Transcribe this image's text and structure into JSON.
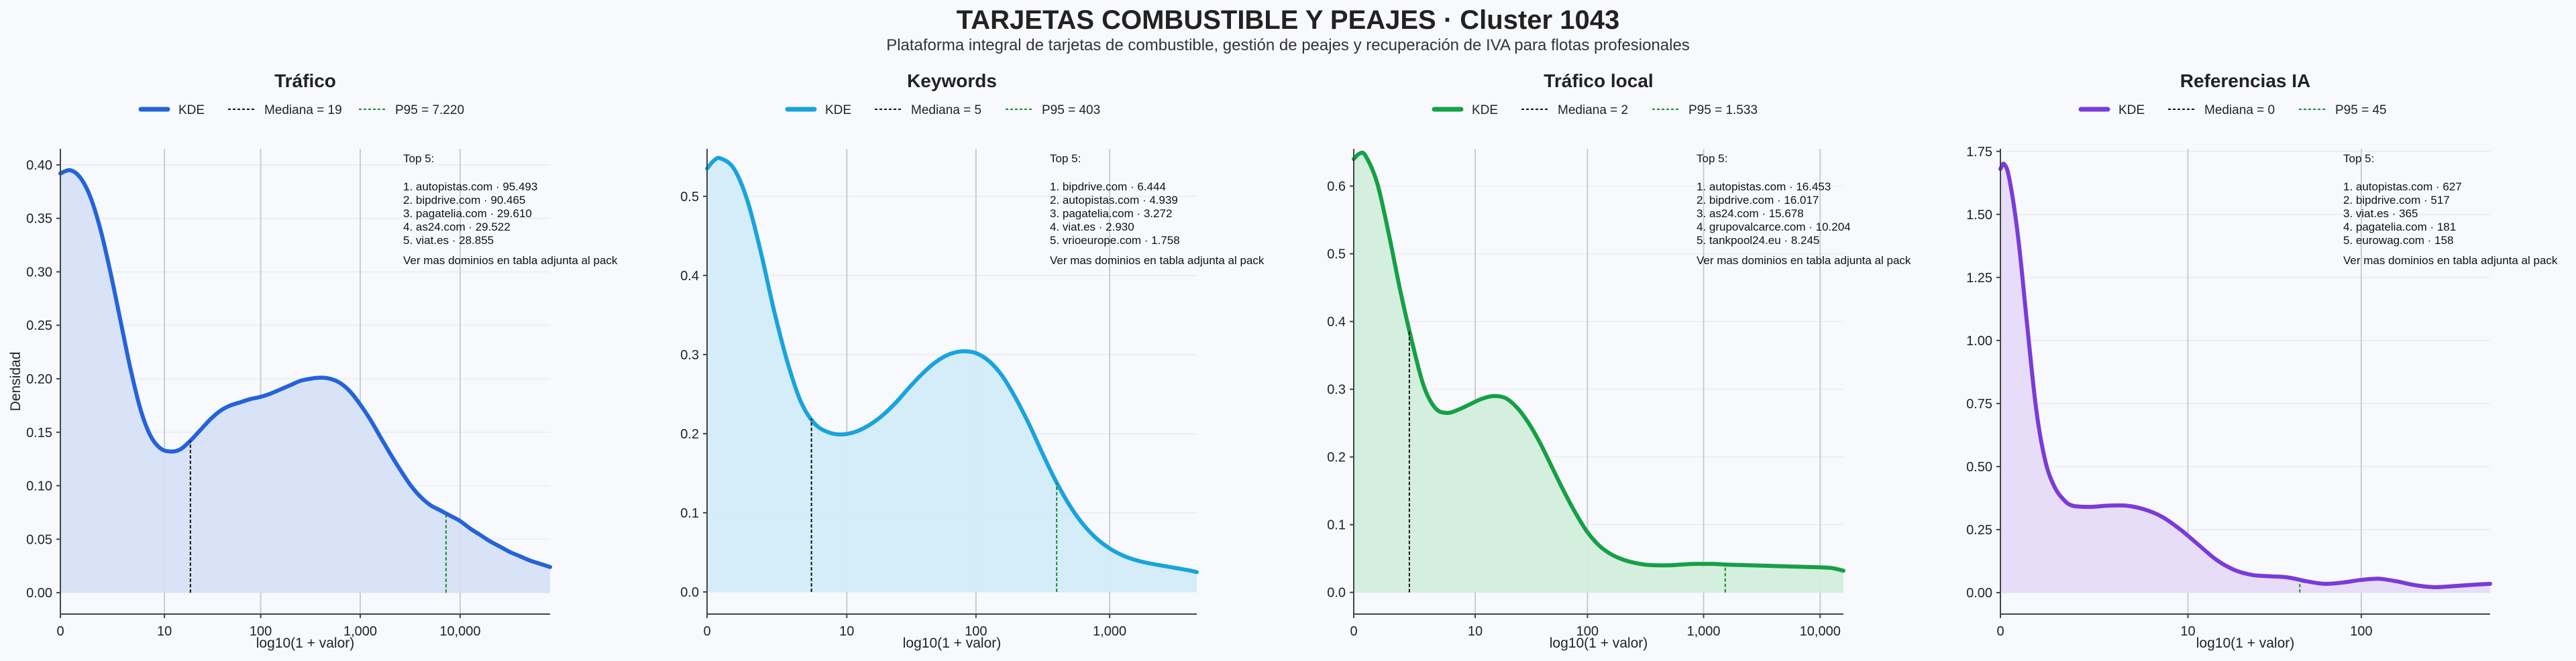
{
  "title": "TARJETAS COMBUSTIBLE Y PEAJES · Cluster 1043",
  "subtitle": "Plataforma integral de tarjetas de combustible, gestión de peajes y recuperación de IVA para flotas profesionales",
  "y_axis_label": "Densidad",
  "x_axis_label": "log10(1 + valor)",
  "legend": {
    "kde": "KDE"
  },
  "top_header": "Top 5:",
  "top_footer": "Ver mas dominios en tabla adjunta al pack",
  "chart_data": [
    {
      "type": "area",
      "title": "Tráfico",
      "color": "#2563d9",
      "fill": "#d6e1f7",
      "xlabel": "log10(1 + valor)",
      "ylabel": "Densidad",
      "xlim": [
        0,
        4.9
      ],
      "ylim": [
        -0.02,
        0.415
      ],
      "xticks": [
        {
          "v": 0,
          "label": "0"
        },
        {
          "v": 1.0414,
          "label": "10"
        },
        {
          "v": 2.0043,
          "label": "100"
        },
        {
          "v": 3.0004,
          "label": "1,000"
        },
        {
          "v": 4,
          "label": "10,000"
        }
      ],
      "yticks": [
        0,
        0.05,
        0.1,
        0.15,
        0.2,
        0.25,
        0.3,
        0.35,
        0.4
      ],
      "ytick_labels": [
        "0.00",
        "0.05",
        "0.10",
        "0.15",
        "0.20",
        "0.25",
        "0.30",
        "0.35",
        "0.40"
      ],
      "median_label": "Mediana = 19",
      "median_x": 1.301,
      "p95_label": "P95 = 7.220",
      "p95_x": 3.859,
      "kde": {
        "x": [
          0,
          0.1,
          0.2,
          0.3,
          0.4,
          0.5,
          0.6,
          0.7,
          0.8,
          0.9,
          1.0,
          1.1,
          1.2,
          1.3,
          1.4,
          1.5,
          1.6,
          1.7,
          1.8,
          1.9,
          2.0,
          2.1,
          2.2,
          2.3,
          2.4,
          2.5,
          2.6,
          2.7,
          2.8,
          2.9,
          3.0,
          3.1,
          3.2,
          3.3,
          3.4,
          3.5,
          3.6,
          3.7,
          3.8,
          3.9,
          4.0,
          4.1,
          4.2,
          4.3,
          4.4,
          4.5,
          4.6,
          4.7,
          4.8,
          4.9
        ],
        "y": [
          0.392,
          0.395,
          0.388,
          0.37,
          0.34,
          0.3,
          0.255,
          0.21,
          0.172,
          0.147,
          0.135,
          0.132,
          0.134,
          0.142,
          0.152,
          0.162,
          0.17,
          0.175,
          0.178,
          0.181,
          0.183,
          0.186,
          0.19,
          0.194,
          0.198,
          0.2,
          0.201,
          0.2,
          0.196,
          0.188,
          0.176,
          0.162,
          0.146,
          0.13,
          0.115,
          0.101,
          0.09,
          0.082,
          0.077,
          0.072,
          0.067,
          0.06,
          0.054,
          0.048,
          0.043,
          0.038,
          0.034,
          0.03,
          0.027,
          0.024
        ]
      },
      "top5": [
        "1. autopistas.com · 95.493",
        "2. bipdrive.com · 90.465",
        "3. pagatelia.com · 29.610",
        "4. as24.com · 29.522",
        "5. viat.es · 28.855"
      ]
    },
    {
      "type": "area",
      "title": "Keywords",
      "color": "#1aa3dc",
      "fill": "#d2ecf8",
      "xlabel": "log10(1 + valor)",
      "ylabel": "",
      "xlim": [
        0,
        3.65
      ],
      "ylim": [
        -0.028,
        0.56
      ],
      "xticks": [
        {
          "v": 0,
          "label": "0"
        },
        {
          "v": 1.0414,
          "label": "10"
        },
        {
          "v": 2.0043,
          "label": "100"
        },
        {
          "v": 3.0004,
          "label": "1,000"
        }
      ],
      "yticks": [
        0,
        0.1,
        0.2,
        0.3,
        0.4,
        0.5
      ],
      "ytick_labels": [
        "0.0",
        "0.1",
        "0.2",
        "0.3",
        "0.4",
        "0.5"
      ],
      "median_label": "Mediana = 5",
      "median_x": 0.778,
      "p95_label": "P95 = 403",
      "p95_x": 2.606,
      "kde": {
        "x": [
          0,
          0.05,
          0.1,
          0.2,
          0.3,
          0.4,
          0.5,
          0.6,
          0.7,
          0.8,
          0.9,
          1.0,
          1.1,
          1.2,
          1.3,
          1.4,
          1.5,
          1.6,
          1.7,
          1.8,
          1.9,
          2.0,
          2.1,
          2.2,
          2.3,
          2.4,
          2.5,
          2.6,
          2.7,
          2.8,
          2.9,
          3.0,
          3.1,
          3.2,
          3.3,
          3.4,
          3.5,
          3.6,
          3.65
        ],
        "y": [
          0.535,
          0.545,
          0.548,
          0.535,
          0.495,
          0.43,
          0.355,
          0.29,
          0.24,
          0.213,
          0.202,
          0.199,
          0.202,
          0.21,
          0.222,
          0.238,
          0.257,
          0.275,
          0.29,
          0.3,
          0.304,
          0.302,
          0.292,
          0.273,
          0.245,
          0.212,
          0.175,
          0.14,
          0.11,
          0.086,
          0.068,
          0.055,
          0.046,
          0.04,
          0.036,
          0.033,
          0.03,
          0.027,
          0.025
        ]
      },
      "top5": [
        "1. bipdrive.com · 6.444",
        "2. autopistas.com · 4.939",
        "3. pagatelia.com · 3.272",
        "4. viat.es · 2.930",
        "5. vrioeurope.com · 1.758"
      ]
    },
    {
      "type": "area",
      "title": "Tráfico local",
      "color": "#16a047",
      "fill": "#d3eedd",
      "xlabel": "log10(1 + valor)",
      "ylabel": "",
      "xlim": [
        0,
        4.2
      ],
      "ylim": [
        -0.032,
        0.655
      ],
      "xticks": [
        {
          "v": 0,
          "label": "0"
        },
        {
          "v": 1.0414,
          "label": "10"
        },
        {
          "v": 2.0043,
          "label": "100"
        },
        {
          "v": 3.0004,
          "label": "1,000"
        },
        {
          "v": 4,
          "label": "10,000"
        }
      ],
      "yticks": [
        0,
        0.1,
        0.2,
        0.3,
        0.4,
        0.5,
        0.6
      ],
      "ytick_labels": [
        "0.0",
        "0.1",
        "0.2",
        "0.3",
        "0.4",
        "0.5",
        "0.6"
      ],
      "median_label": "Mediana = 2",
      "median_x": 0.477,
      "p95_label": "P95 = 1.533",
      "p95_x": 3.186,
      "kde": {
        "x": [
          0,
          0.05,
          0.1,
          0.2,
          0.3,
          0.4,
          0.5,
          0.6,
          0.7,
          0.8,
          0.9,
          1.0,
          1.1,
          1.2,
          1.3,
          1.4,
          1.5,
          1.6,
          1.7,
          1.8,
          1.9,
          2.0,
          2.1,
          2.2,
          2.3,
          2.4,
          2.5,
          2.6,
          2.7,
          2.8,
          2.9,
          3.0,
          3.1,
          3.2,
          3.4,
          3.6,
          3.8,
          4.0,
          4.1,
          4.2
        ],
        "y": [
          0.64,
          0.648,
          0.645,
          0.605,
          0.53,
          0.445,
          0.37,
          0.305,
          0.272,
          0.265,
          0.27,
          0.278,
          0.286,
          0.29,
          0.287,
          0.273,
          0.25,
          0.22,
          0.185,
          0.15,
          0.118,
          0.09,
          0.07,
          0.057,
          0.049,
          0.044,
          0.041,
          0.04,
          0.04,
          0.041,
          0.042,
          0.042,
          0.042,
          0.041,
          0.04,
          0.039,
          0.038,
          0.037,
          0.036,
          0.032
        ]
      },
      "top5": [
        "1. autopistas.com · 16.453",
        "2. bipdrive.com · 16.017",
        "3. as24.com · 15.678",
        "4. grupovalcarce.com · 10.204",
        "5. tankpool24.eu · 8.245"
      ]
    },
    {
      "type": "area",
      "title": "Referencias IA",
      "color": "#7a3bd9",
      "fill": "#e6dbf8",
      "xlabel": "log10(1 + valor)",
      "ylabel": "",
      "xlim": [
        0,
        2.72
      ],
      "ylim": [
        -0.085,
        1.76
      ],
      "xticks": [
        {
          "v": 0,
          "label": "0"
        },
        {
          "v": 1.0414,
          "label": "10"
        },
        {
          "v": 2.0043,
          "label": "100"
        }
      ],
      "yticks": [
        0,
        0.25,
        0.5,
        0.75,
        1.0,
        1.25,
        1.5,
        1.75
      ],
      "ytick_labels": [
        "0.00",
        "0.25",
        "0.50",
        "0.75",
        "1.00",
        "1.25",
        "1.50",
        "1.75"
      ],
      "median_label": "Mediana = 0",
      "median_x": 0.0,
      "p95_label": "P95 = 45",
      "p95_x": 1.663,
      "kde": {
        "x": [
          0,
          0.02,
          0.05,
          0.1,
          0.15,
          0.2,
          0.25,
          0.3,
          0.35,
          0.4,
          0.5,
          0.6,
          0.7,
          0.8,
          0.9,
          1.0,
          1.1,
          1.2,
          1.3,
          1.4,
          1.5,
          1.6,
          1.7,
          1.8,
          1.9,
          2.0,
          2.1,
          2.2,
          2.3,
          2.4,
          2.5,
          2.6,
          2.72
        ],
        "y": [
          1.68,
          1.7,
          1.64,
          1.4,
          1.05,
          0.72,
          0.52,
          0.42,
          0.37,
          0.345,
          0.34,
          0.345,
          0.345,
          0.33,
          0.3,
          0.25,
          0.19,
          0.13,
          0.09,
          0.07,
          0.065,
          0.06,
          0.045,
          0.035,
          0.04,
          0.05,
          0.055,
          0.045,
          0.03,
          0.022,
          0.025,
          0.03,
          0.035
        ]
      },
      "top5": [
        "1. autopistas.com · 627",
        "2. bipdrive.com · 517",
        "3. viat.es · 365",
        "4. pagatelia.com · 181",
        "5. eurowag.com · 158"
      ]
    }
  ]
}
